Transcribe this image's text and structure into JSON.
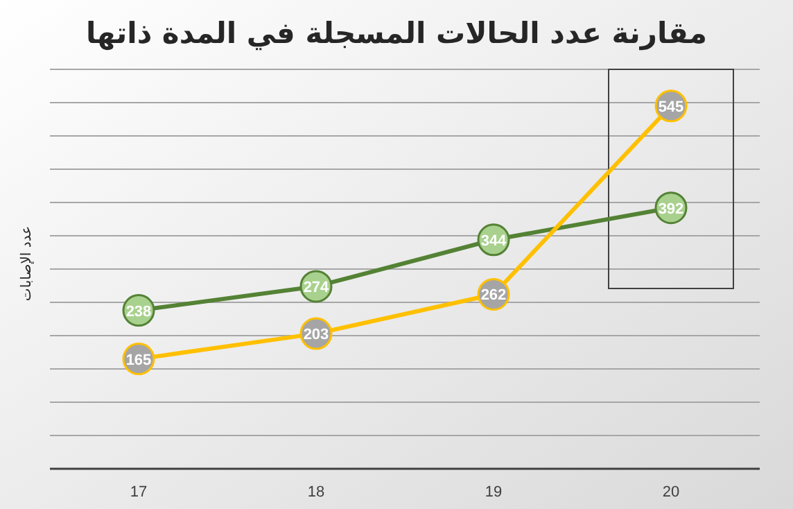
{
  "chart_data": {
    "type": "line",
    "title": "مقارنة عدد الحالات المسجلة في المدة ذاتها",
    "ylabel": "عدد الإصابات",
    "categories": [
      "17",
      "18",
      "19",
      "20"
    ],
    "series": [
      {
        "color": "#548235",
        "colors": [
          "#a9d18e",
          "#a9d18e",
          "#a9d18e",
          "#a9d18e"
        ],
        "values": [
          238,
          274,
          344,
          392
        ]
      },
      {
        "color": "#ffc000",
        "colors": [
          "#a5a5a5",
          "#a5a5a5",
          "#a5a5a5",
          "#a5a5a5"
        ],
        "values": [
          165,
          203,
          262,
          545
        ]
      }
    ],
    "ylim": [
      0,
      600
    ],
    "yticks": [
      {
        "value": 0,
        "label": null
      },
      {
        "value": 50,
        "label": null
      },
      {
        "value": 100,
        "label": null
      },
      {
        "value": 150,
        "label": null
      },
      {
        "value": 200,
        "label": null
      },
      {
        "value": 250,
        "label": null
      },
      {
        "value": 300,
        "label": null
      },
      {
        "value": 350,
        "label": null
      },
      {
        "value": 400,
        "label": null
      },
      {
        "value": 450,
        "label": null
      },
      {
        "value": 500,
        "label": null
      },
      {
        "value": 550,
        "label": null
      },
      {
        "value": 600,
        "label": null
      }
    ],
    "tick_labels": "x",
    "grid": "y",
    "marker": "circle",
    "line_style": "solid",
    "data_labels": true
  }
}
